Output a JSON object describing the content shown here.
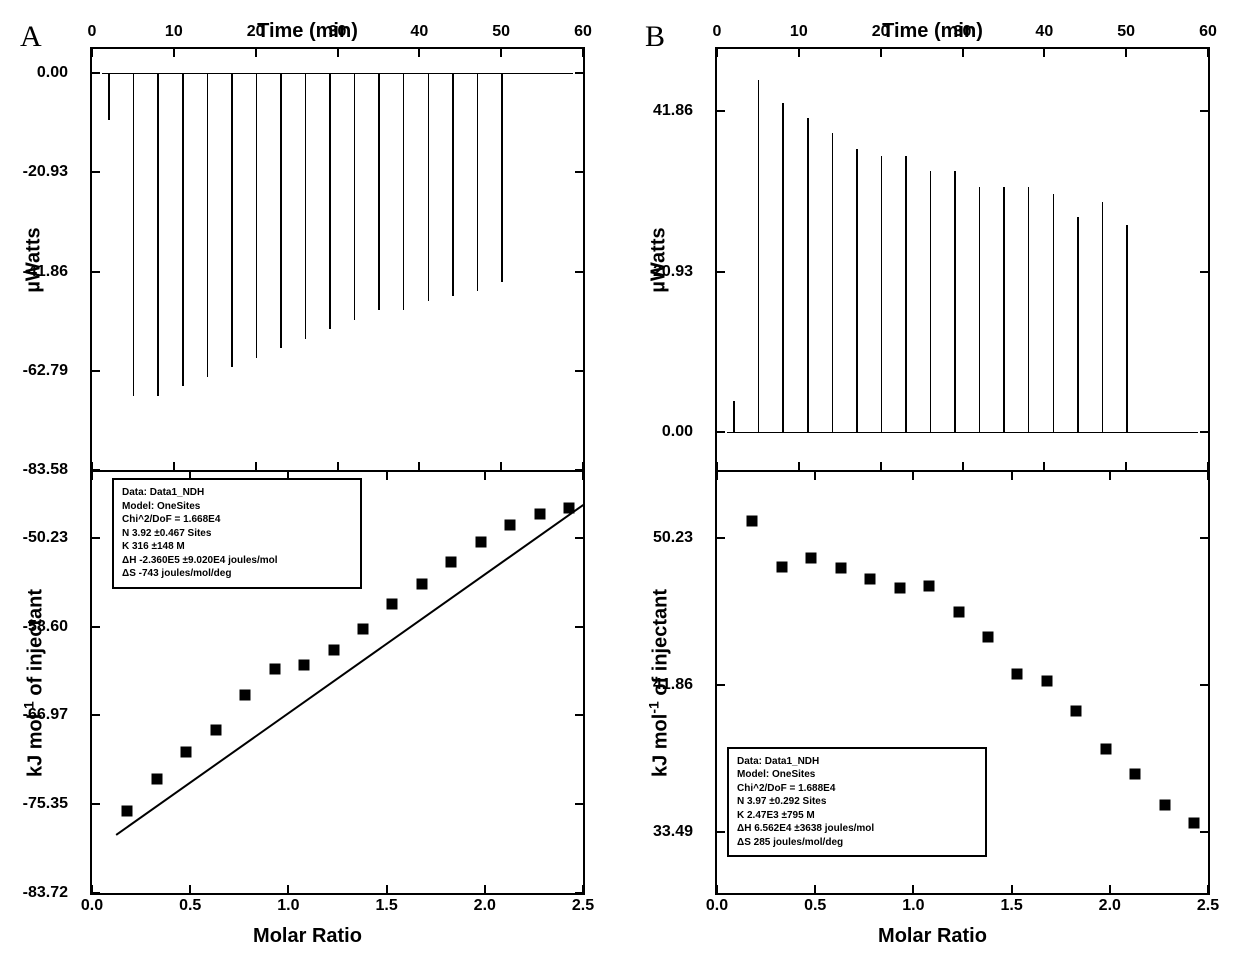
{
  "figure": {
    "background_color": "#ffffff",
    "line_color": "#000000",
    "text_color": "#000000",
    "panel_label_fontsize": 30,
    "axis_label_fontsize": 20,
    "tick_label_fontsize": 16,
    "legend_fontsize": 10
  },
  "panelA": {
    "label": "A",
    "top": {
      "title": "Time (min)",
      "xlim": [
        0,
        60
      ],
      "xticks": [
        0,
        10,
        20,
        30,
        40,
        50,
        60
      ],
      "ylabel": "µWatts",
      "ylim": [
        -83.58,
        5
      ],
      "yticks": [
        0.0,
        -20.93,
        -41.86,
        -62.79,
        -83.58
      ],
      "ytick_labels": [
        "0.00",
        "-20.93",
        "-41.86",
        "-62.79",
        "-83.58"
      ],
      "baseline_y": 0,
      "spikes_x": [
        2,
        5,
        8,
        11,
        14,
        17,
        20,
        23,
        26,
        29,
        32,
        35,
        38,
        41,
        44,
        47,
        50
      ],
      "spikes_depth": [
        -10,
        -68,
        -68,
        -66,
        -64,
        -62,
        -60,
        -58,
        -56,
        -54,
        -52,
        -50,
        -50,
        -48,
        -47,
        -46,
        -44
      ]
    },
    "bottom": {
      "xlabel": "Molar Ratio",
      "xlim": [
        0.0,
        2.5
      ],
      "xticks": [
        0.0,
        0.5,
        1.0,
        1.5,
        2.0,
        2.5
      ],
      "xtick_labels": [
        "0.0",
        "0.5",
        "1.0",
        "1.5",
        "2.0",
        "2.5"
      ],
      "ylabel": "kJ mol⁻¹ of injectant",
      "ylim": [
        -83.72,
        -44
      ],
      "yticks": [
        -50.23,
        -58.6,
        -66.97,
        -75.35,
        -83.72
      ],
      "ytick_labels": [
        "-50.23",
        "-58.60",
        "-66.97",
        "-75.35",
        "-83.72"
      ],
      "markers_x": [
        0.18,
        0.33,
        0.48,
        0.63,
        0.78,
        0.93,
        1.08,
        1.23,
        1.38,
        1.53,
        1.68,
        1.83,
        1.98,
        2.13,
        2.28,
        2.43
      ],
      "markers_y": [
        -76.0,
        -73.0,
        -70.4,
        -68.3,
        -65.0,
        -62.6,
        -62.2,
        -60.8,
        -58.8,
        -56.5,
        -54.6,
        -52.5,
        -50.6,
        -49.0,
        -48.0,
        -47.4
      ],
      "fit_start": [
        0.12,
        -78.0
      ],
      "fit_end": [
        2.48,
        -47.0
      ],
      "legend": {
        "pos": "top-left",
        "lines": [
          "Data: Data1_NDH",
          "Model: OneSites",
          "Chi^2/DoF = 1.668E4",
          "N       3.92    ±0.467 Sites",
          "K       316     ±148 M",
          "ΔH   -2.360E5   ±9.020E4 joules/mol",
          "ΔS   -743 joules/mol/deg"
        ]
      }
    }
  },
  "panelB": {
    "label": "B",
    "top": {
      "title": "Time (min)",
      "xlim": [
        0,
        60
      ],
      "xticks": [
        0,
        10,
        20,
        30,
        40,
        50,
        60
      ],
      "ylabel": "µWatts",
      "ylim": [
        -5,
        50
      ],
      "yticks": [
        0.0,
        20.93,
        41.86
      ],
      "ytick_labels": [
        "0.00",
        "20.93",
        "41.86"
      ],
      "baseline_y": 0,
      "spikes_x": [
        2,
        5,
        8,
        11,
        14,
        17,
        20,
        23,
        26,
        29,
        32,
        35,
        38,
        41,
        44,
        47,
        50
      ],
      "spikes_depth": [
        4,
        46,
        43,
        41,
        39,
        37,
        36,
        36,
        34,
        34,
        32,
        32,
        32,
        31,
        28,
        30,
        27
      ]
    },
    "bottom": {
      "xlabel": "Molar Ratio",
      "xlim": [
        0.0,
        2.5
      ],
      "xticks": [
        0.0,
        0.5,
        1.0,
        1.5,
        2.0,
        2.5
      ],
      "xtick_labels": [
        "0.0",
        "0.5",
        "1.0",
        "1.5",
        "2.0",
        "2.5"
      ],
      "ylabel": "kJ mol⁻¹ of injectant",
      "ylim": [
        30,
        54
      ],
      "yticks": [
        50.23,
        41.86,
        33.49
      ],
      "ytick_labels": [
        "50.23",
        "41.86",
        "33.49"
      ],
      "markers_x": [
        0.18,
        0.33,
        0.48,
        0.63,
        0.78,
        0.93,
        1.08,
        1.23,
        1.38,
        1.53,
        1.68,
        1.83,
        1.98,
        2.13,
        2.28,
        2.43
      ],
      "markers_y": [
        51.2,
        48.6,
        49.1,
        48.5,
        47.9,
        47.4,
        47.5,
        46.0,
        44.6,
        42.5,
        42.1,
        40.4,
        38.2,
        36.8,
        35.0,
        34.0
      ],
      "legend": {
        "pos": "bottom-left",
        "lines": [
          "Data: Data1_NDH",
          "Model: OneSites",
          "Chi^2/DoF = 1.688E4",
          "N       3.97    ±0.292 Sites",
          "K       2.47E3  ±795 M",
          "ΔH    6.562E4   ±3638 joules/mol",
          "ΔS    285 joules/mol/deg"
        ]
      }
    }
  }
}
